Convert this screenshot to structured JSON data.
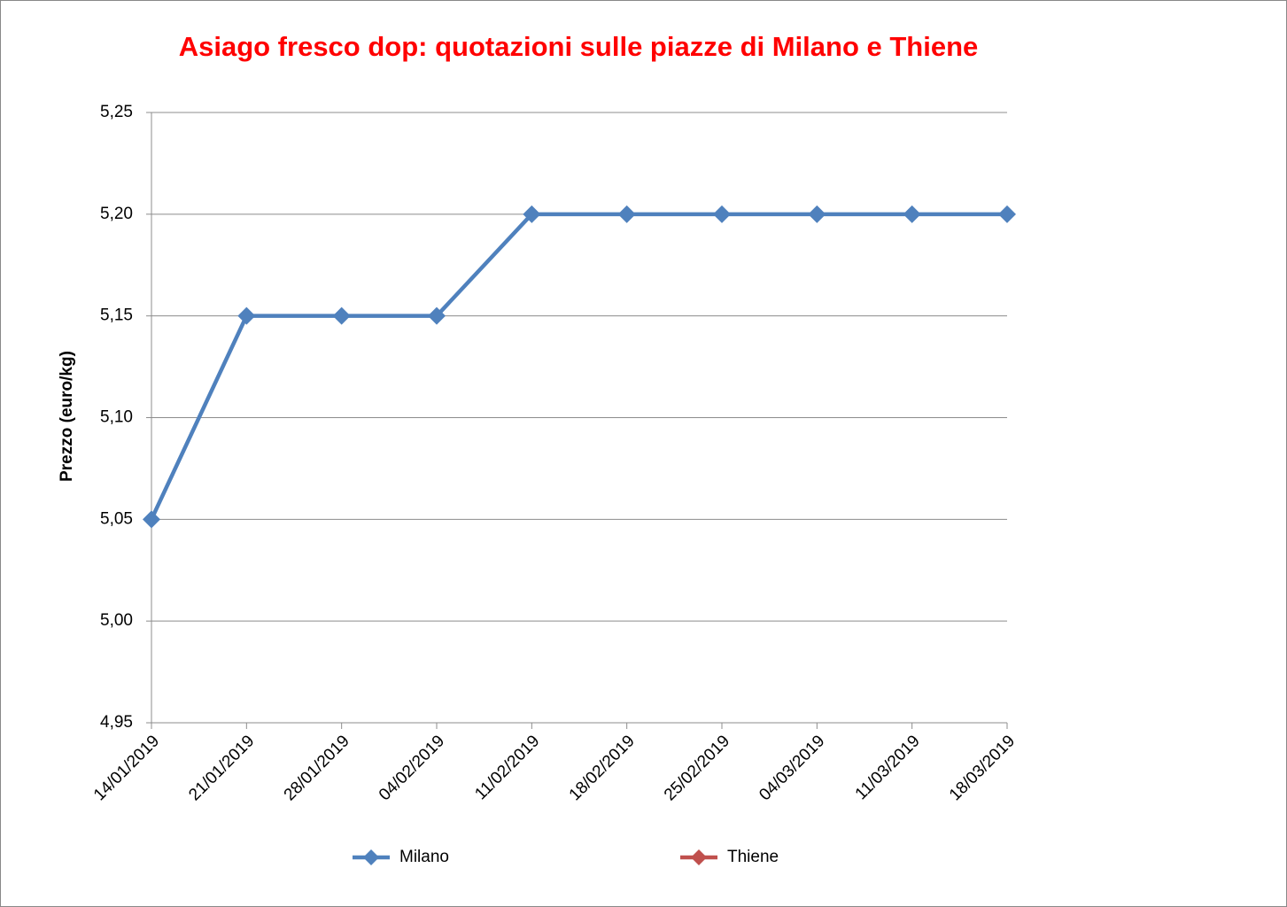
{
  "chart_data": {
    "type": "line",
    "title": "Asiago fresco dop: quotazioni sulle piazze di Milano e Thiene",
    "y_label": "Prezzo (euro/kg)",
    "categories": [
      "14/01/2019",
      "21/01/2019",
      "28/01/2019",
      "04/02/2019",
      "11/02/2019",
      "18/02/2019",
      "25/02/2019",
      "04/03/2019",
      "11/03/2019",
      "18/03/2019"
    ],
    "series": [
      {
        "name": "Milano",
        "color": "#4f81bd",
        "values": [
          5.05,
          5.15,
          5.15,
          5.15,
          5.2,
          5.2,
          5.2,
          5.2,
          5.2,
          5.2
        ]
      },
      {
        "name": "Thiene",
        "color": "#c0504d",
        "values": [
          null,
          null,
          null,
          null,
          null,
          null,
          null,
          null,
          null,
          null
        ]
      }
    ],
    "ylim": [
      4.95,
      5.25
    ],
    "yticks": [
      {
        "value": 4.95,
        "label": "4,95"
      },
      {
        "value": 5.0,
        "label": "5,00"
      },
      {
        "value": 5.05,
        "label": "5,05"
      },
      {
        "value": 5.1,
        "label": "5,10"
      },
      {
        "value": 5.15,
        "label": "5,15"
      },
      {
        "value": 5.2,
        "label": "5,20"
      },
      {
        "value": 5.25,
        "label": "5,25"
      }
    ],
    "grid": true,
    "legend": "bottom"
  }
}
